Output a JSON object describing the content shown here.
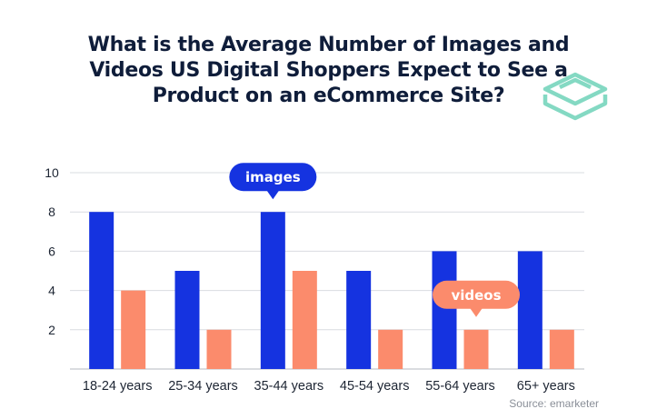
{
  "chart_data": {
    "type": "bar",
    "title": "What is the Average Number of Images and Videos US Digital Shoppers Expect to See a Product on an eCommerce Site?",
    "categories": [
      "18-24 years",
      "25-34 years",
      "35-44 years",
      "45-54 years",
      "55-64 years",
      "65+ years"
    ],
    "series": [
      {
        "name": "images",
        "values": [
          8,
          5,
          8,
          5,
          6,
          6
        ],
        "color": "#1533e0"
      },
      {
        "name": "videos",
        "values": [
          4,
          2,
          5,
          2,
          2,
          2
        ],
        "color": "#fb8b6c"
      }
    ],
    "ylim": [
      0,
      10
    ],
    "yticks": [
      2,
      4,
      6,
      8,
      10
    ],
    "grid": true,
    "callouts": [
      {
        "text": "images",
        "series": 0,
        "category": 2,
        "color": "#1533e0"
      },
      {
        "text": "videos",
        "series": 1,
        "category": 4,
        "color": "#fb8b6c"
      }
    ],
    "source": "Source: emarketer"
  },
  "logo": {
    "icon": "stacked-layers-logo-icon",
    "color": "#84d9c3"
  }
}
